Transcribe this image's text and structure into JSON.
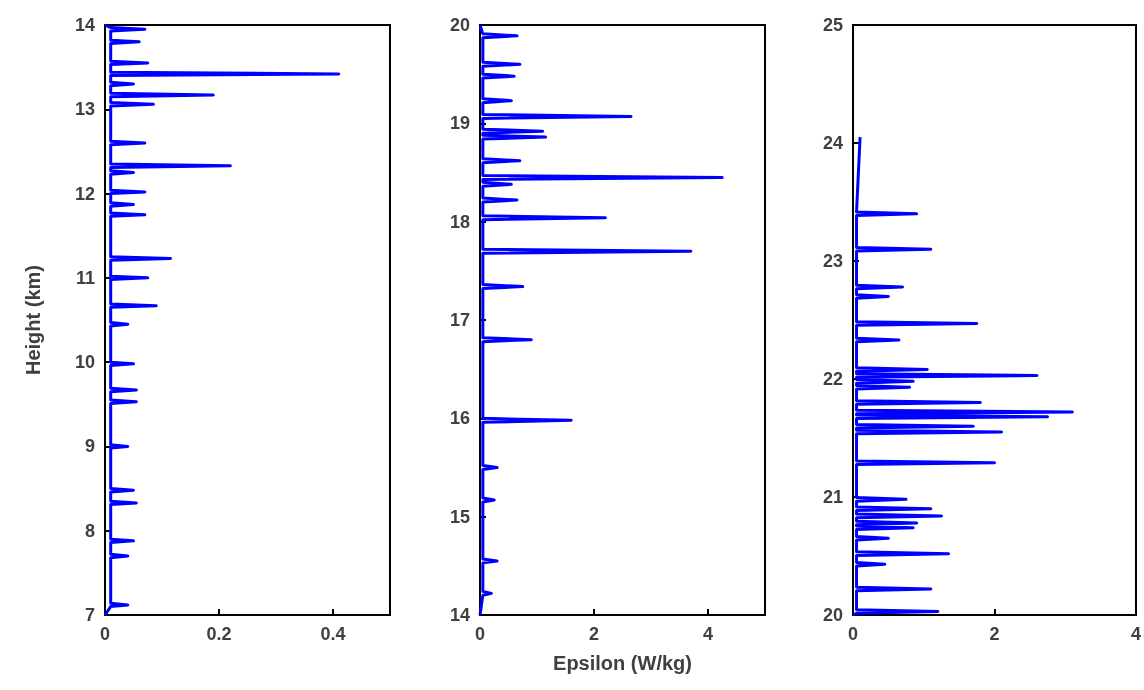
{
  "chart_data": [
    {
      "type": "line",
      "ylabel": "Height (km)",
      "xlim": [
        0,
        0.5
      ],
      "xticks": [
        0,
        0.2,
        0.4
      ],
      "ylim": [
        7,
        14
      ],
      "yticks": [
        7,
        8,
        9,
        10,
        11,
        12,
        13,
        14
      ],
      "series": [
        {
          "color": "#0000ff",
          "x": [
            0,
            0.01,
            0.04,
            0.01,
            0.01,
            0.04,
            0.01,
            0.01,
            0.05,
            0.01,
            0.01,
            0.055,
            0.01,
            0.01,
            0.05,
            0.01,
            0.01,
            0.04,
            0.01,
            0.01,
            0.055,
            0.01,
            0.01,
            0.055,
            0.01,
            0.01,
            0.05,
            0.01,
            0.01,
            0.04,
            0.01,
            0.01,
            0.09,
            0.01,
            0.01,
            0.075,
            0.01,
            0.01,
            0.115,
            0.01,
            0.01,
            0.07,
            0.01,
            0.01,
            0.05,
            0.01,
            0.01,
            0.07,
            0.01,
            0.01,
            0.05,
            0.01,
            0.01,
            0.22,
            0.01,
            0.01,
            0.07,
            0.01,
            0.01,
            0.085,
            0.01,
            0.01,
            0.19,
            0.01,
            0.01,
            0.05,
            0.01,
            0.01,
            0.41,
            0.01,
            0.01,
            0.075,
            0.01,
            0.01,
            0.06,
            0.01,
            0.01,
            0.07,
            0.01,
            0
          ],
          "values": [
            7,
            7.1,
            7.12,
            7.14,
            7.68,
            7.7,
            7.72,
            7.86,
            7.88,
            7.9,
            8.31,
            8.33,
            8.35,
            8.46,
            8.48,
            8.5,
            8.98,
            9,
            9.02,
            9.51,
            9.53,
            9.55,
            9.65,
            9.67,
            9.69,
            9.96,
            9.98,
            10,
            10.43,
            10.45,
            10.47,
            10.65,
            10.67,
            10.69,
            10.98,
            11,
            11.02,
            11.21,
            11.23,
            11.25,
            11.73,
            11.75,
            11.77,
            11.85,
            11.87,
            11.89,
            12,
            12.02,
            12.04,
            12.23,
            12.25,
            12.27,
            12.31,
            12.33,
            12.35,
            12.58,
            12.6,
            12.62,
            13.04,
            13.06,
            13.08,
            13.15,
            13.17,
            13.19,
            13.28,
            13.3,
            13.32,
            13.4,
            13.42,
            13.44,
            13.53,
            13.55,
            13.57,
            13.78,
            13.8,
            13.82,
            13.93,
            13.95,
            13.97,
            14
          ]
        }
      ]
    },
    {
      "type": "line",
      "xlabel": "Epsilon (W/kg)",
      "xlim": [
        0,
        5
      ],
      "xticks": [
        0,
        2,
        4
      ],
      "ylim": [
        14,
        20
      ],
      "yticks": [
        14,
        15,
        16,
        17,
        18,
        19,
        20
      ],
      "series": [
        {
          "color": "#0000ff",
          "x": [
            0,
            0.05,
            0.2,
            0.05,
            0.05,
            0.3,
            0.05,
            0.05,
            0.25,
            0.05,
            0.05,
            0.3,
            0.05,
            0.05,
            1.6,
            0.05,
            0.05,
            0.9,
            0.05,
            0.05,
            0.75,
            0.05,
            0.05,
            3.7,
            0.05,
            0.05,
            2.2,
            0.05,
            0.05,
            0.65,
            0.05,
            0.05,
            0.55,
            0.05,
            0.05,
            4.25,
            0.05,
            0.05,
            0.7,
            0.05,
            0.05,
            1.15,
            0.05,
            0.05,
            1.1,
            0.05,
            0.05,
            2.65,
            0.05,
            0.05,
            0.55,
            0.05,
            0.05,
            0.6,
            0.05,
            0.05,
            0.7,
            0.05,
            0.05,
            0.65,
            0.05,
            0
          ],
          "values": [
            14,
            14.2,
            14.22,
            14.24,
            14.53,
            14.55,
            14.57,
            15.15,
            15.17,
            15.19,
            15.48,
            15.5,
            15.52,
            15.96,
            15.98,
            16,
            16.78,
            16.8,
            16.82,
            17.32,
            17.34,
            17.36,
            17.68,
            17.7,
            17.72,
            18.02,
            18.04,
            18.06,
            18.2,
            18.22,
            18.24,
            18.36,
            18.38,
            18.4,
            18.43,
            18.45,
            18.47,
            18.6,
            18.62,
            18.64,
            18.84,
            18.86,
            18.88,
            18.9,
            18.92,
            18.94,
            19.05,
            19.07,
            19.09,
            19.21,
            19.23,
            19.25,
            19.46,
            19.48,
            19.5,
            19.58,
            19.6,
            19.62,
            19.87,
            19.89,
            19.91,
            20
          ]
        }
      ]
    },
    {
      "type": "line",
      "xlim": [
        0,
        4
      ],
      "xticks": [
        0,
        2,
        4
      ],
      "ylim": [
        20,
        25
      ],
      "yticks": [
        20,
        21,
        22,
        23,
        24,
        25
      ],
      "series": [
        {
          "color": "#0000ff",
          "x": [
            0,
            0.05,
            1.2,
            0.05,
            0.05,
            1.1,
            0.05,
            0.05,
            0.45,
            0.05,
            0.05,
            1.35,
            0.05,
            0.05,
            0.5,
            0.05,
            0.05,
            0.85,
            0.05,
            0.05,
            0.9,
            0.05,
            0.05,
            1.25,
            0.05,
            0.05,
            1.1,
            0.05,
            0.05,
            0.75,
            0.05,
            0.05,
            2,
            0.05,
            0.05,
            2.1,
            0.05,
            0.05,
            1.7,
            0.05,
            0.05,
            2.75,
            0.05,
            0.05,
            3.1,
            0.05,
            0.05,
            1.8,
            0.05,
            0.05,
            0.8,
            0.05,
            0.05,
            0.85,
            0.05,
            0.05,
            2.6,
            0.05,
            0.05,
            1.05,
            0.05,
            0.05,
            0.65,
            0.05,
            0.05,
            1.75,
            0.05,
            0.05,
            0.5,
            0.05,
            0.05,
            0.7,
            0.05,
            0.05,
            1.1,
            0.05,
            0.05,
            0.9,
            0.05,
            0.1
          ],
          "values": [
            20,
            20.015,
            20.03,
            20.045,
            20.205,
            20.22,
            20.235,
            20.415,
            20.43,
            20.445,
            20.505,
            20.52,
            20.535,
            20.635,
            20.65,
            20.665,
            20.725,
            20.74,
            20.755,
            20.765,
            20.78,
            20.795,
            20.825,
            20.84,
            20.855,
            20.885,
            20.9,
            20.915,
            20.965,
            20.98,
            20.995,
            21.275,
            21.29,
            21.305,
            21.535,
            21.55,
            21.565,
            21.585,
            21.6,
            21.615,
            21.665,
            21.68,
            21.695,
            21.705,
            21.72,
            21.735,
            21.785,
            21.8,
            21.815,
            21.915,
            21.93,
            21.945,
            21.965,
            21.98,
            21.995,
            22.015,
            22.03,
            22.045,
            22.065,
            22.08,
            22.095,
            22.315,
            22.33,
            22.345,
            22.455,
            22.47,
            22.485,
            22.685,
            22.7,
            22.715,
            22.765,
            22.78,
            22.795,
            23.085,
            23.1,
            23.115,
            23.385,
            23.4,
            23.415,
            24.05
          ]
        }
      ]
    }
  ]
}
